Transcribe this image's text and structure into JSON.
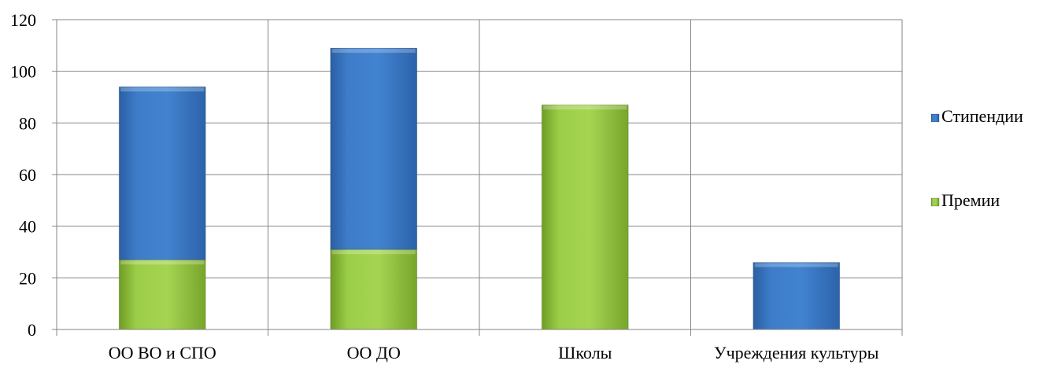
{
  "chart_data": {
    "type": "bar",
    "stacked": true,
    "categories": [
      "ОО ВО и СПО",
      "ОО ДО",
      "Школы",
      "Учреждения культуры"
    ],
    "series": [
      {
        "name": "Премии",
        "values": [
          27,
          31,
          87,
          0
        ],
        "color": "#92c83e"
      },
      {
        "name": "Стипендии",
        "values": [
          67,
          78,
          0,
          26
        ],
        "color": "#3a78c4"
      }
    ],
    "y_ticks": [
      "0",
      "20",
      "40",
      "60",
      "80",
      "100",
      "120"
    ],
    "ylim": [
      0,
      120
    ],
    "grid": true,
    "legend": "right",
    "legend_order": [
      "Стипендии",
      "Премии"
    ]
  }
}
